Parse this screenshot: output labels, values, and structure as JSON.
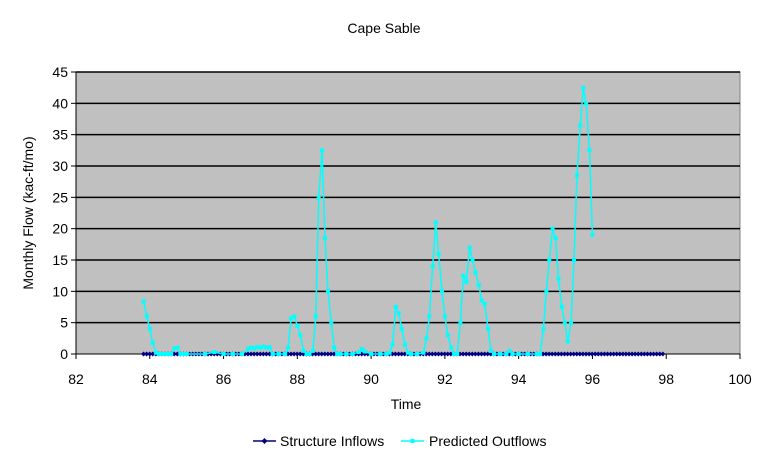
{
  "chart_data": {
    "type": "line",
    "title": "Cape Sable",
    "xlabel": "Time",
    "ylabel": "Monthly Flow (kac-ft/mo)",
    "xlim": [
      82,
      100
    ],
    "ylim": [
      0,
      45
    ],
    "xticks": [
      82,
      84,
      86,
      88,
      90,
      92,
      94,
      96,
      98,
      100
    ],
    "yticks": [
      0,
      5,
      10,
      15,
      20,
      25,
      30,
      35,
      40,
      45
    ],
    "grid": "horizontal",
    "plot_background": "#C0C0C0",
    "legend_position": "bottom",
    "series": [
      {
        "name": "Structure Inflows",
        "color": "#000080",
        "marker": "diamond",
        "x_start": 83.83,
        "x_end": 97.92,
        "x_step": 0.0833,
        "values": "all-zero"
      },
      {
        "name": "Predicted Outflows",
        "color": "#00FFFF",
        "marker": "square",
        "points": [
          [
            83.83,
            8.4
          ],
          [
            83.92,
            6.0
          ],
          [
            84.0,
            4.0
          ],
          [
            84.08,
            1.8
          ],
          [
            84.17,
            0.2
          ],
          [
            84.25,
            0.0
          ],
          [
            84.33,
            0.0
          ],
          [
            84.42,
            0.0
          ],
          [
            84.5,
            0.0
          ],
          [
            84.58,
            0.0
          ],
          [
            84.67,
            0.9
          ],
          [
            84.75,
            1.0
          ],
          [
            84.83,
            0.0
          ],
          [
            84.92,
            0.0
          ],
          [
            85.0,
            0.0
          ],
          [
            85.5,
            0.0
          ],
          [
            85.75,
            0.3
          ],
          [
            86.0,
            0.0
          ],
          [
            86.25,
            0.0
          ],
          [
            86.5,
            0.0
          ],
          [
            86.67,
            0.8
          ],
          [
            86.75,
            1.0
          ],
          [
            86.83,
            0.9
          ],
          [
            86.92,
            1.1
          ],
          [
            87.0,
            1.0
          ],
          [
            87.08,
            1.2
          ],
          [
            87.17,
            1.0
          ],
          [
            87.25,
            1.1
          ],
          [
            87.33,
            0.0
          ],
          [
            87.5,
            0.0
          ],
          [
            87.67,
            0.0
          ],
          [
            87.75,
            1.0
          ],
          [
            87.83,
            5.7
          ],
          [
            87.92,
            6.0
          ],
          [
            88.0,
            4.5
          ],
          [
            88.08,
            3.0
          ],
          [
            88.17,
            0.5
          ],
          [
            88.25,
            0.0
          ],
          [
            88.33,
            0.0
          ],
          [
            88.42,
            0.5
          ],
          [
            88.5,
            6.0
          ],
          [
            88.58,
            25.0
          ],
          [
            88.67,
            32.5
          ],
          [
            88.75,
            18.5
          ],
          [
            88.83,
            10.0
          ],
          [
            88.92,
            5.0
          ],
          [
            89.0,
            1.0
          ],
          [
            89.08,
            0.0
          ],
          [
            89.17,
            0.0
          ],
          [
            89.33,
            0.0
          ],
          [
            89.5,
            0.0
          ],
          [
            89.67,
            0.3
          ],
          [
            89.75,
            0.8
          ],
          [
            89.83,
            0.4
          ],
          [
            90.0,
            0.0
          ],
          [
            90.25,
            0.0
          ],
          [
            90.42,
            0.0
          ],
          [
            90.5,
            0.2
          ],
          [
            90.58,
            1.5
          ],
          [
            90.67,
            7.5
          ],
          [
            90.75,
            6.5
          ],
          [
            90.83,
            4.0
          ],
          [
            90.92,
            1.5
          ],
          [
            91.0,
            0.2
          ],
          [
            91.08,
            0.0
          ],
          [
            91.25,
            0.0
          ],
          [
            91.42,
            0.2
          ],
          [
            91.5,
            2.5
          ],
          [
            91.58,
            6.0
          ],
          [
            91.67,
            14.0
          ],
          [
            91.75,
            21.0
          ],
          [
            91.83,
            16.0
          ],
          [
            91.92,
            10.0
          ],
          [
            92.0,
            6.0
          ],
          [
            92.08,
            3.0
          ],
          [
            92.17,
            1.0
          ],
          [
            92.25,
            0.0
          ],
          [
            92.33,
            0.0
          ],
          [
            92.42,
            5.0
          ],
          [
            92.5,
            12.5
          ],
          [
            92.58,
            11.5
          ],
          [
            92.67,
            17.0
          ],
          [
            92.75,
            15.0
          ],
          [
            92.83,
            13.0
          ],
          [
            92.92,
            11.0
          ],
          [
            93.0,
            8.5
          ],
          [
            93.08,
            8.0
          ],
          [
            93.17,
            4.0
          ],
          [
            93.25,
            0.5
          ],
          [
            93.33,
            0.0
          ],
          [
            93.5,
            0.0
          ],
          [
            93.67,
            0.0
          ],
          [
            93.75,
            0.5
          ],
          [
            93.83,
            0.0
          ],
          [
            94.0,
            0.0
          ],
          [
            94.25,
            0.0
          ],
          [
            94.5,
            0.0
          ],
          [
            94.58,
            0.0
          ],
          [
            94.67,
            4.0
          ],
          [
            94.75,
            10.0
          ],
          [
            94.83,
            15.0
          ],
          [
            94.92,
            20.0
          ],
          [
            95.0,
            18.5
          ],
          [
            95.08,
            12.0
          ],
          [
            95.17,
            7.5
          ],
          [
            95.25,
            5.0
          ],
          [
            95.33,
            2.0
          ],
          [
            95.42,
            5.0
          ],
          [
            95.5,
            15.0
          ],
          [
            95.58,
            28.5
          ],
          [
            95.67,
            36.5
          ],
          [
            95.75,
            42.5
          ],
          [
            95.83,
            40.0
          ],
          [
            95.92,
            32.5
          ],
          [
            96.0,
            19.0
          ]
        ]
      }
    ]
  }
}
